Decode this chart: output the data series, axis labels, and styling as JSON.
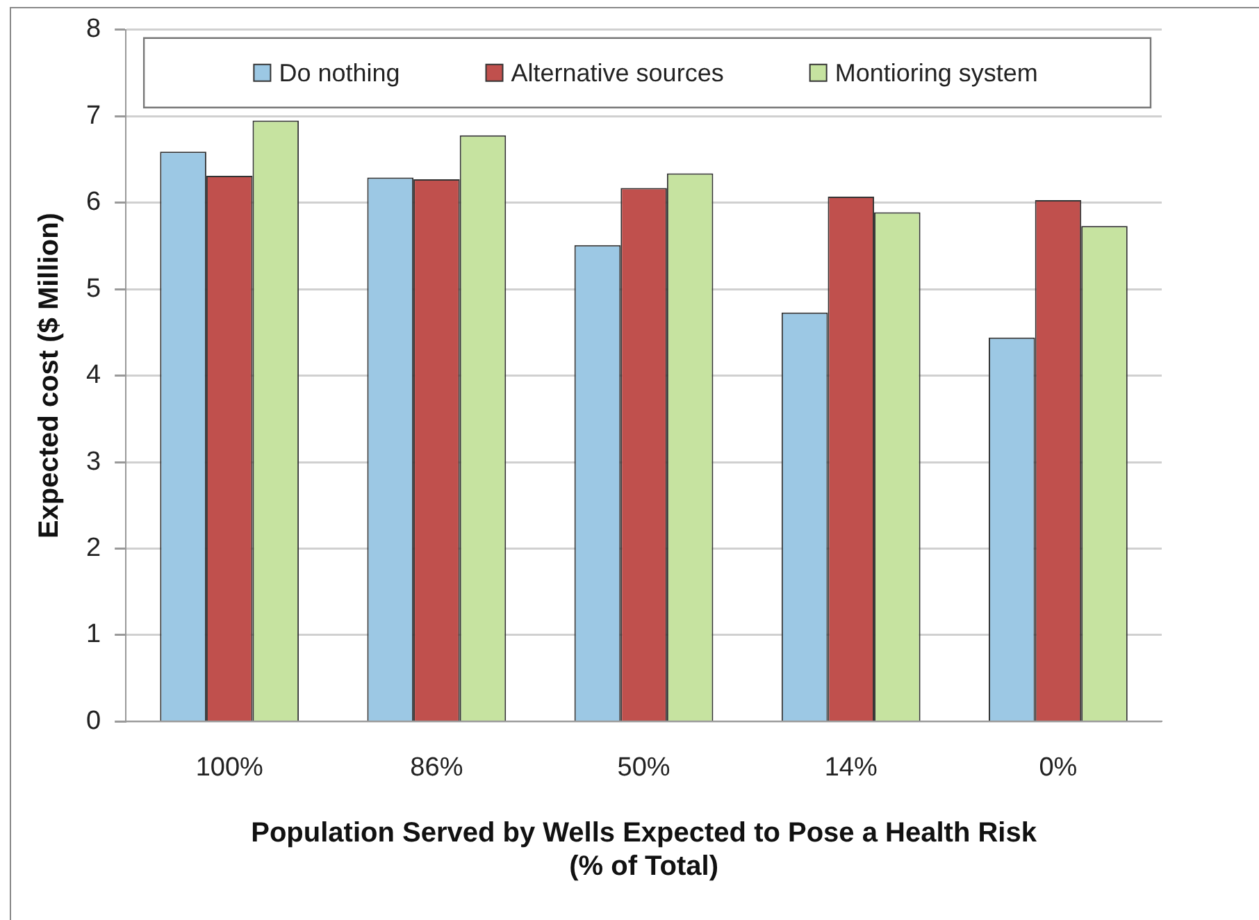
{
  "chart_data": {
    "type": "bar",
    "xlabel": "Population Served by Wells Expected to Pose a Health Risk\n(% of Total)",
    "ylabel": "Expected cost ($ Million)",
    "categories": [
      "100%",
      "86%",
      "50%",
      "14%",
      "0%"
    ],
    "series": [
      {
        "name": "Do nothing",
        "color": "#9cc8e4",
        "values": [
          6.59,
          6.29,
          5.51,
          4.73,
          4.44
        ]
      },
      {
        "name": "Alternative sources",
        "color": "#c0504d",
        "values": [
          6.31,
          6.27,
          6.17,
          6.07,
          6.03
        ]
      },
      {
        "name": "Montioring system",
        "color": "#c6e3a0",
        "values": [
          6.95,
          6.78,
          6.34,
          5.89,
          5.73
        ]
      }
    ],
    "ylim": [
      0,
      8
    ],
    "yticks": [
      0,
      1,
      2,
      3,
      4,
      5,
      6,
      7,
      8
    ],
    "grid": "y",
    "legend": "top"
  }
}
